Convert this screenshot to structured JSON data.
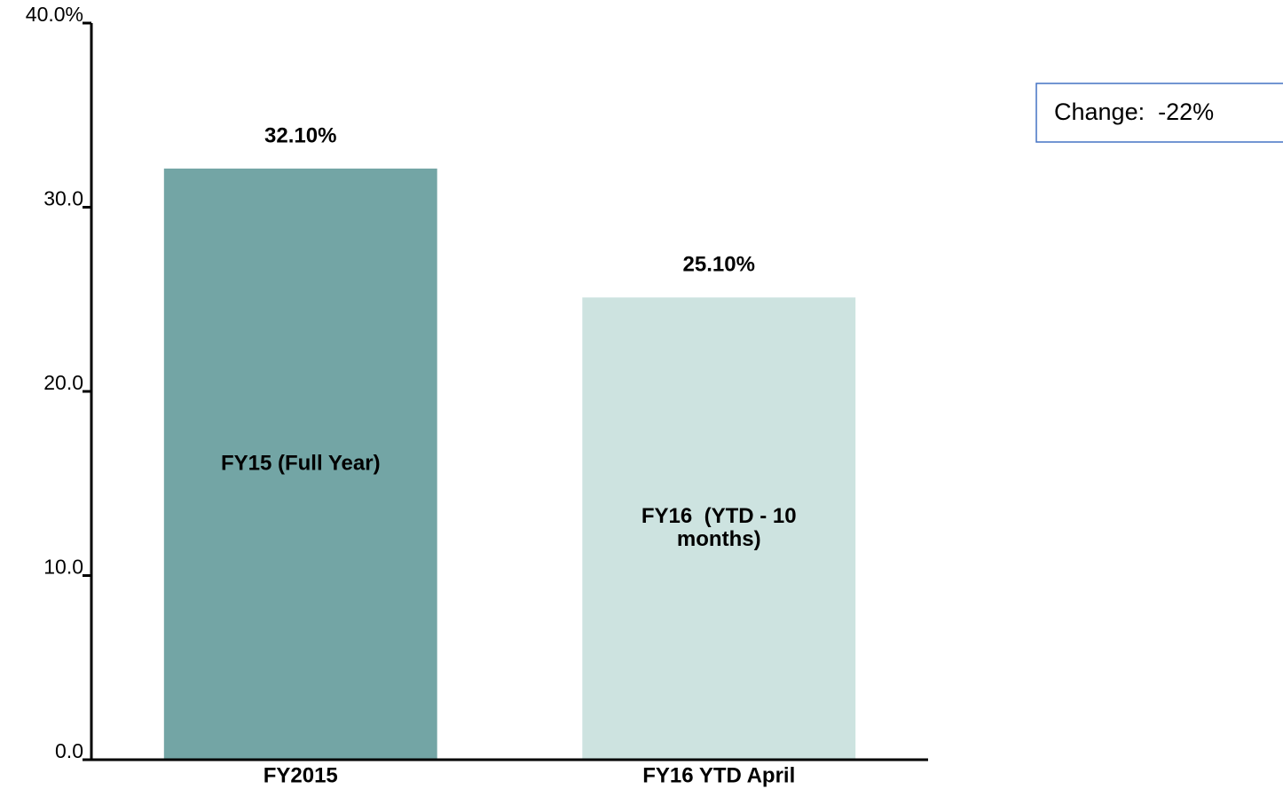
{
  "chart_data": {
    "type": "bar",
    "categories": [
      "FY2015",
      "FY16 YTD April"
    ],
    "values": [
      32.1,
      25.1
    ],
    "value_labels": [
      "32.10%",
      "25.10%"
    ],
    "colors": [
      "#73a5a5",
      "#cde3e0"
    ],
    "bar_labels": [
      [
        "FY15 (Full Year)"
      ],
      [
        "FY16  (YTD - 10",
        "months)"
      ]
    ],
    "annotation": "Change:  -22%",
    "ylim": [
      0,
      40
    ],
    "yticks": [
      {
        "value": 0,
        "label": "0.0"
      },
      {
        "value": 10,
        "label": "10.0"
      },
      {
        "value": 20,
        "label": "20.0"
      },
      {
        "value": 30,
        "label": "30.0"
      },
      {
        "value": 40,
        "label": "40.0%"
      }
    ]
  }
}
